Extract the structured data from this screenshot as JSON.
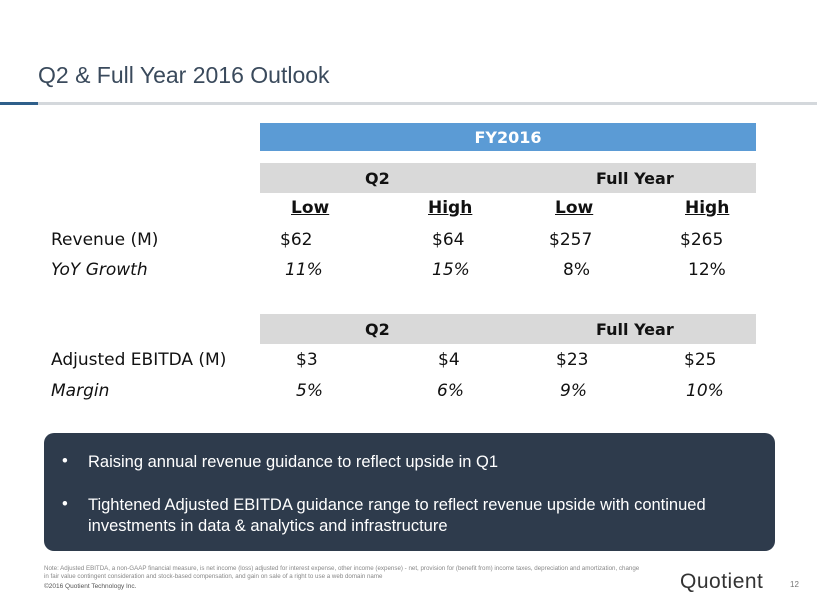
{
  "title": "Q2 & Full Year 2016 Outlook",
  "table": {
    "fy_header": "FY2016",
    "group_header": {
      "q2": "Q2",
      "full_year": "Full Year"
    },
    "range_header": {
      "q2_low": "Low",
      "q2_high": "High",
      "fy_low": "Low",
      "fy_high": "High"
    },
    "revenue": {
      "label": "Revenue (M)",
      "q2_low": "$62",
      "q2_high": "$64",
      "fy_low": "$257",
      "fy_high": "$265"
    },
    "yoy": {
      "label": "YoY Growth",
      "q2_low": "11%",
      "q2_high": "15%",
      "fy_low": "8%",
      "fy_high": "12%"
    },
    "group_header_2": {
      "q2": "Q2",
      "full_year": "Full Year"
    },
    "ebitda": {
      "label": "Adjusted EBITDA (M)",
      "q2_low": "$3",
      "q2_high": "$4",
      "fy_low": "$23",
      "fy_high": "$25"
    },
    "margin": {
      "label": "Margin",
      "q2_low": "5%",
      "q2_high": "6%",
      "fy_low": "9%",
      "fy_high": "10%"
    }
  },
  "callout": {
    "bullets": [
      "Raising annual revenue guidance to reflect upside in Q1",
      "Tightened Adjusted EBITDA guidance range to reflect revenue upside with continued investments in data & analytics and infrastructure"
    ]
  },
  "footer": {
    "note": "Note: Adjusted EBITDA, a non-GAAP financial measure, is net income (loss) adjusted for interest expense,  other income (expense) - net, provision for (benefit from) income taxes, depreciation and amortization, change in fair value contingent consideration and stock-based compensation, and gain on sale of a right to use a web domain name",
    "copyright": "©2016 Quotient Technology Inc.",
    "logo": "Quotient",
    "page_number": "12"
  }
}
